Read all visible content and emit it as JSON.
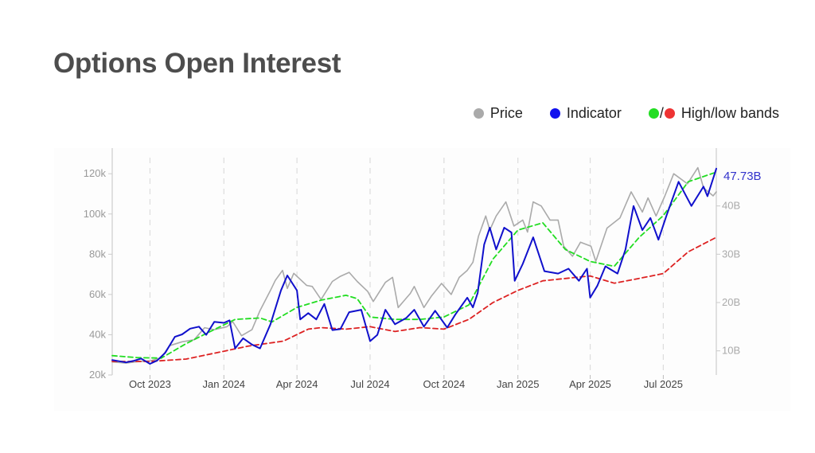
{
  "title": "Options Open Interest",
  "legend": {
    "price_label": "Price",
    "indicator_label": "Indicator",
    "bands_label": "High/low bands",
    "bands_separator": "/"
  },
  "colors": {
    "price": "#aaaaaa",
    "indicator": "#1010cc",
    "high_band": "#22dd22",
    "low_band": "#dd2222",
    "title": "#4d4d4d",
    "last_value": "#3333cc"
  },
  "chart_data": {
    "type": "line",
    "x_axis": {
      "type": "date",
      "range": [
        "2023-08-15",
        "2025-09-05"
      ],
      "ticks": [
        {
          "date": "2023-10-01",
          "label": "Oct 2023"
        },
        {
          "date": "2024-01-01",
          "label": "Jan 2024"
        },
        {
          "date": "2024-04-01",
          "label": "Apr 2024"
        },
        {
          "date": "2024-07-01",
          "label": "Jul 2024"
        },
        {
          "date": "2024-10-01",
          "label": "Oct 2024"
        },
        {
          "date": "2025-01-01",
          "label": "Jan 2025"
        },
        {
          "date": "2025-04-01",
          "label": "Apr 2025"
        },
        {
          "date": "2025-07-01",
          "label": "Jul 2025"
        }
      ],
      "grid": true
    },
    "y_axis_left": {
      "range": [
        20000,
        128000
      ],
      "ticks": [
        {
          "value": 20000,
          "label": "20k"
        },
        {
          "value": 40000,
          "label": "40k"
        },
        {
          "value": 60000,
          "label": "60k"
        },
        {
          "value": 80000,
          "label": "80k"
        },
        {
          "value": 100000,
          "label": "100k"
        },
        {
          "value": 120000,
          "label": "120k"
        }
      ]
    },
    "y_axis_right": {
      "range": [
        5,
        50
      ],
      "unit": "B",
      "ticks": [
        {
          "value": 10,
          "label": "10B"
        },
        {
          "value": 20,
          "label": "20B"
        },
        {
          "value": 30,
          "label": "30B"
        },
        {
          "value": 40,
          "label": "40B"
        }
      ]
    },
    "last_value_label": "47.73B",
    "series": [
      {
        "key": "price",
        "name": "Price",
        "axis": "left",
        "style": "solid",
        "points": [
          [
            "2023-08-15",
            26500
          ],
          [
            "2023-09-01",
            25900
          ],
          [
            "2023-09-15",
            26600
          ],
          [
            "2023-10-01",
            27000
          ],
          [
            "2023-10-15",
            28500
          ],
          [
            "2023-10-25",
            34500
          ],
          [
            "2023-11-10",
            36500
          ],
          [
            "2023-11-25",
            37500
          ],
          [
            "2023-12-08",
            43500
          ],
          [
            "2023-12-20",
            42500
          ],
          [
            "2024-01-05",
            44000
          ],
          [
            "2024-01-12",
            46500
          ],
          [
            "2024-01-23",
            39500
          ],
          [
            "2024-02-05",
            42500
          ],
          [
            "2024-02-15",
            52000
          ],
          [
            "2024-02-28",
            62000
          ],
          [
            "2024-03-05",
            67000
          ],
          [
            "2024-03-14",
            72000
          ],
          [
            "2024-03-20",
            63000
          ],
          [
            "2024-03-28",
            70500
          ],
          [
            "2024-04-13",
            64500
          ],
          [
            "2024-04-20",
            64000
          ],
          [
            "2024-05-01",
            57500
          ],
          [
            "2024-05-15",
            66500
          ],
          [
            "2024-05-25",
            69000
          ],
          [
            "2024-06-05",
            71000
          ],
          [
            "2024-06-15",
            66500
          ],
          [
            "2024-06-28",
            61500
          ],
          [
            "2024-07-05",
            56500
          ],
          [
            "2024-07-20",
            66000
          ],
          [
            "2024-07-29",
            68500
          ],
          [
            "2024-08-05",
            53500
          ],
          [
            "2024-08-20",
            60500
          ],
          [
            "2024-08-25",
            64000
          ],
          [
            "2024-09-06",
            53500
          ],
          [
            "2024-09-15",
            59000
          ],
          [
            "2024-09-28",
            65500
          ],
          [
            "2024-10-10",
            60000
          ],
          [
            "2024-10-20",
            68500
          ],
          [
            "2024-10-30",
            72000
          ],
          [
            "2024-11-06",
            76000
          ],
          [
            "2024-11-13",
            89000
          ],
          [
            "2024-11-22",
            99000
          ],
          [
            "2024-11-27",
            92000
          ],
          [
            "2024-12-05",
            99000
          ],
          [
            "2024-12-17",
            106000
          ],
          [
            "2024-12-27",
            94000
          ],
          [
            "2025-01-07",
            97000
          ],
          [
            "2025-01-13",
            91000
          ],
          [
            "2025-01-20",
            106000
          ],
          [
            "2025-01-30",
            104000
          ],
          [
            "2025-02-10",
            97000
          ],
          [
            "2025-02-20",
            97000
          ],
          [
            "2025-02-27",
            84000
          ],
          [
            "2025-03-10",
            79000
          ],
          [
            "2025-03-20",
            86000
          ],
          [
            "2025-04-02",
            84000
          ],
          [
            "2025-04-08",
            76500
          ],
          [
            "2025-04-22",
            93000
          ],
          [
            "2025-05-08",
            98000
          ],
          [
            "2025-05-22",
            111000
          ],
          [
            "2025-06-05",
            101000
          ],
          [
            "2025-06-12",
            108000
          ],
          [
            "2025-06-22",
            99000
          ],
          [
            "2025-07-03",
            109000
          ],
          [
            "2025-07-14",
            120000
          ],
          [
            "2025-07-31",
            115000
          ],
          [
            "2025-08-13",
            123000
          ],
          [
            "2025-08-20",
            113000
          ],
          [
            "2025-09-01",
            109000
          ],
          [
            "2025-09-05",
            111000
          ]
        ]
      },
      {
        "key": "indicator",
        "name": "Indicator",
        "axis": "right",
        "style": "solid",
        "points": [
          [
            "2023-08-15",
            8.1
          ],
          [
            "2023-09-01",
            7.6
          ],
          [
            "2023-09-10",
            7.9
          ],
          [
            "2023-09-20",
            8.4
          ],
          [
            "2023-10-01",
            7.3
          ],
          [
            "2023-10-10",
            8.0
          ],
          [
            "2023-10-20",
            9.6
          ],
          [
            "2023-11-01",
            12.9
          ],
          [
            "2023-11-10",
            13.4
          ],
          [
            "2023-11-20",
            14.6
          ],
          [
            "2023-12-01",
            15.0
          ],
          [
            "2023-12-10",
            13.3
          ],
          [
            "2023-12-20",
            16.0
          ],
          [
            "2024-01-01",
            15.8
          ],
          [
            "2024-01-08",
            16.3
          ],
          [
            "2024-01-15",
            10.5
          ],
          [
            "2024-01-25",
            12.6
          ],
          [
            "2024-02-05",
            11.3
          ],
          [
            "2024-02-15",
            10.5
          ],
          [
            "2024-02-28",
            15.5
          ],
          [
            "2024-03-12",
            22.5
          ],
          [
            "2024-03-20",
            25.6
          ],
          [
            "2024-04-01",
            22.5
          ],
          [
            "2024-04-05",
            16.5
          ],
          [
            "2024-04-15",
            17.8
          ],
          [
            "2024-04-25",
            16.5
          ],
          [
            "2024-05-05",
            19.7
          ],
          [
            "2024-05-15",
            14.3
          ],
          [
            "2024-05-25",
            14.5
          ],
          [
            "2024-06-05",
            18.0
          ],
          [
            "2024-06-20",
            18.5
          ],
          [
            "2024-07-01",
            12.0
          ],
          [
            "2024-07-10",
            13.3
          ],
          [
            "2024-07-20",
            18.5
          ],
          [
            "2024-08-01",
            15.5
          ],
          [
            "2024-08-15",
            16.8
          ],
          [
            "2024-08-25",
            18.5
          ],
          [
            "2024-09-06",
            15.0
          ],
          [
            "2024-09-20",
            18.3
          ],
          [
            "2024-10-05",
            14.8
          ],
          [
            "2024-10-15",
            17.5
          ],
          [
            "2024-10-30",
            21.0
          ],
          [
            "2024-11-06",
            19.0
          ],
          [
            "2024-11-12",
            22.0
          ],
          [
            "2024-11-20",
            32.0
          ],
          [
            "2024-11-27",
            35.5
          ],
          [
            "2024-12-05",
            31.0
          ],
          [
            "2024-12-15",
            35.5
          ],
          [
            "2024-12-24",
            34.5
          ],
          [
            "2024-12-28",
            24.5
          ],
          [
            "2025-01-07",
            28.0
          ],
          [
            "2025-01-20",
            33.5
          ],
          [
            "2025-02-03",
            26.5
          ],
          [
            "2025-02-20",
            26.0
          ],
          [
            "2025-03-05",
            27.0
          ],
          [
            "2025-03-18",
            24.5
          ],
          [
            "2025-03-28",
            27.0
          ],
          [
            "2025-04-01",
            21.0
          ],
          [
            "2025-04-10",
            23.5
          ],
          [
            "2025-04-20",
            27.5
          ],
          [
            "2025-05-05",
            26.0
          ],
          [
            "2025-05-15",
            31.0
          ],
          [
            "2025-05-25",
            40.0
          ],
          [
            "2025-06-05",
            35.0
          ],
          [
            "2025-06-15",
            37.5
          ],
          [
            "2025-06-25",
            33.0
          ],
          [
            "2025-07-05",
            38.0
          ],
          [
            "2025-07-20",
            45.0
          ],
          [
            "2025-08-05",
            40.0
          ],
          [
            "2025-08-20",
            44.0
          ],
          [
            "2025-08-25",
            42.0
          ],
          [
            "2025-09-05",
            47.73
          ]
        ]
      },
      {
        "key": "high_band",
        "name": "High band",
        "axis": "right",
        "style": "dashed",
        "points": [
          [
            "2023-08-15",
            9.0
          ],
          [
            "2023-09-15",
            8.6
          ],
          [
            "2023-10-15",
            8.5
          ],
          [
            "2023-11-15",
            11.5
          ],
          [
            "2023-12-15",
            14.0
          ],
          [
            "2024-01-15",
            16.5
          ],
          [
            "2024-02-15",
            16.8
          ],
          [
            "2024-03-01",
            16.0
          ],
          [
            "2024-04-01",
            19.0
          ],
          [
            "2024-05-01",
            20.5
          ],
          [
            "2024-06-01",
            21.5
          ],
          [
            "2024-06-15",
            20.8
          ],
          [
            "2024-07-01",
            17.0
          ],
          [
            "2024-08-01",
            16.5
          ],
          [
            "2024-09-01",
            16.5
          ],
          [
            "2024-10-01",
            17.0
          ],
          [
            "2024-11-01",
            19.5
          ],
          [
            "2024-12-01",
            29.0
          ],
          [
            "2025-01-01",
            35.0
          ],
          [
            "2025-02-01",
            36.5
          ],
          [
            "2025-03-01",
            31.0
          ],
          [
            "2025-04-01",
            28.5
          ],
          [
            "2025-05-01",
            27.5
          ],
          [
            "2025-06-01",
            33.5
          ],
          [
            "2025-07-01",
            38.0
          ],
          [
            "2025-08-01",
            45.0
          ],
          [
            "2025-09-05",
            47.0
          ]
        ]
      },
      {
        "key": "low_band",
        "name": "Low band",
        "axis": "right",
        "style": "dashed",
        "points": [
          [
            "2023-08-15",
            7.8
          ],
          [
            "2023-10-01",
            7.8
          ],
          [
            "2023-11-15",
            8.3
          ],
          [
            "2023-12-20",
            9.5
          ],
          [
            "2024-02-01",
            11.0
          ],
          [
            "2024-03-15",
            12.0
          ],
          [
            "2024-04-15",
            14.5
          ],
          [
            "2024-05-01",
            14.8
          ],
          [
            "2024-06-01",
            14.5
          ],
          [
            "2024-07-01",
            15.0
          ],
          [
            "2024-08-01",
            14.0
          ],
          [
            "2024-09-01",
            14.8
          ],
          [
            "2024-10-01",
            14.5
          ],
          [
            "2024-11-01",
            16.5
          ],
          [
            "2024-12-01",
            20.0
          ],
          [
            "2025-01-01",
            22.5
          ],
          [
            "2025-02-01",
            24.5
          ],
          [
            "2025-04-01",
            25.5
          ],
          [
            "2025-05-01",
            24.0
          ],
          [
            "2025-06-01",
            25.0
          ],
          [
            "2025-07-01",
            26.0
          ],
          [
            "2025-08-01",
            30.5
          ],
          [
            "2025-09-05",
            33.5
          ]
        ]
      }
    ]
  }
}
